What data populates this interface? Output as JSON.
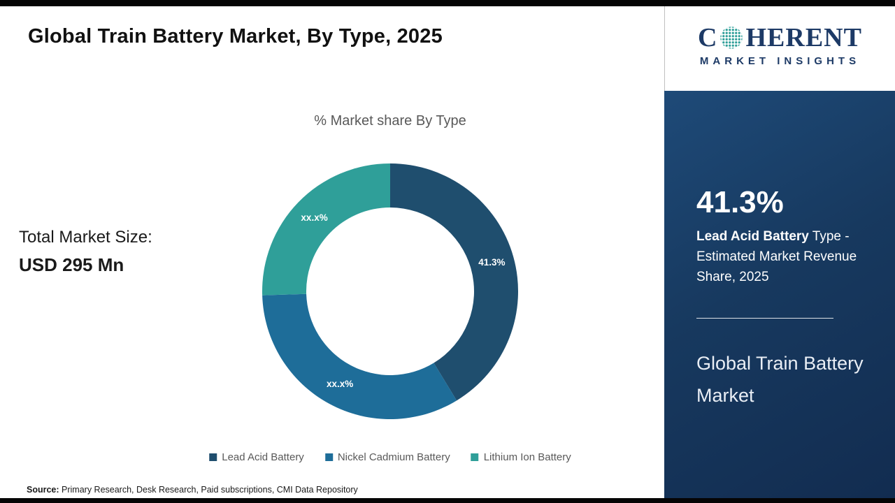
{
  "title": "Global Train Battery Market, By Type, 2025",
  "total_market": {
    "label": "Total Market Size:",
    "value": "USD 295 Mn"
  },
  "chart_data": {
    "type": "pie",
    "donut": true,
    "title": "% Market share By Type",
    "categories": [
      "Lead Acid Battery",
      "Nickel Cadmium Battery",
      "Lithium Ion Battery"
    ],
    "values": [
      41.3,
      33.2,
      25.5
    ],
    "display_labels": [
      "41.3%",
      "xx.x%",
      "xx.x%"
    ],
    "colors": [
      "#1f4e6e",
      "#1e6d99",
      "#2f9f99"
    ],
    "legend_position": "bottom",
    "start_angle_deg": -90
  },
  "source": {
    "label": "Source:",
    "text": " Primary Research, Desk Research, Paid subscriptions, CMI Data Repository"
  },
  "sidebar": {
    "logo": {
      "word_start": "C",
      "word_rest": "HERENT",
      "tagline": "MARKET INSIGHTS",
      "brand_color": "#1d3a66",
      "globe_dot_color": "#2f9f99"
    },
    "stat_value": "41.3%",
    "stat_bold": "Lead Acid Battery",
    "stat_rest": " Type - Estimated Market Revenue Share, 2025",
    "market_name": "Global Train Battery Market",
    "panel_color": "#17395f"
  }
}
